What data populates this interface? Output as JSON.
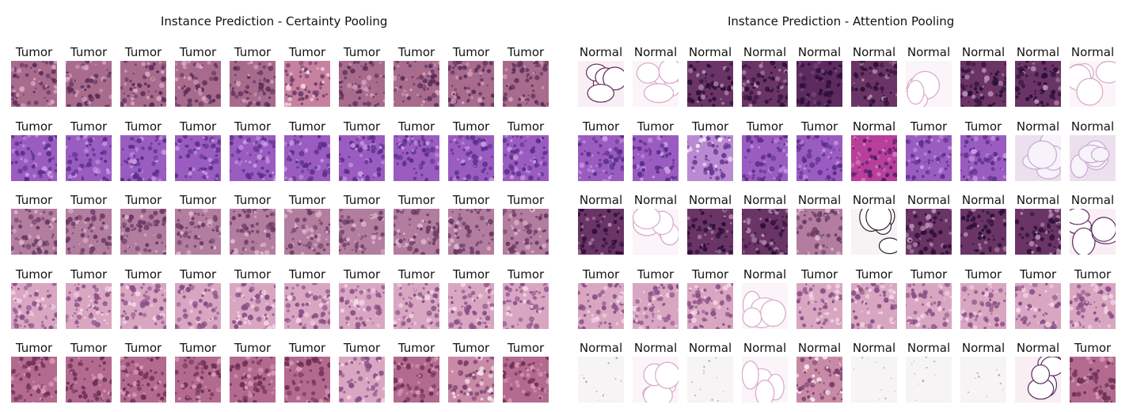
{
  "figure": {
    "panels": [
      {
        "title": "Instance Prediction - Certainty Pooling",
        "rows": [
          {
            "tissue": "dense-tumor",
            "labels": [
              "Tumor",
              "Tumor",
              "Tumor",
              "Tumor",
              "Tumor",
              "Tumor",
              "Tumor",
              "Tumor",
              "Tumor",
              "Tumor"
            ],
            "tiles": [
              "dense",
              "dense",
              "dense",
              "dense",
              "dense",
              "stroma",
              "dense",
              "dense",
              "dense",
              "dense"
            ]
          },
          {
            "tissue": "purple-tumor",
            "labels": [
              "Tumor",
              "Tumor",
              "Tumor",
              "Tumor",
              "Tumor",
              "Tumor",
              "Tumor",
              "Tumor",
              "Tumor",
              "Tumor"
            ],
            "tiles": [
              "violet",
              "violet",
              "violet",
              "violet",
              "violet",
              "violet",
              "violet",
              "violet",
              "violet",
              "violet"
            ]
          },
          {
            "tissue": "mauve-tumor",
            "labels": [
              "Tumor",
              "Tumor",
              "Tumor",
              "Tumor",
              "Tumor",
              "Tumor",
              "Tumor",
              "Tumor",
              "Tumor",
              "Tumor"
            ],
            "tiles": [
              "mauve",
              "mauve",
              "mauve",
              "mauve",
              "mauve",
              "mauve",
              "mauve",
              "mauve",
              "mauve",
              "mauve"
            ]
          },
          {
            "tissue": "pink-tumor",
            "labels": [
              "Tumor",
              "Tumor",
              "Tumor",
              "Tumor",
              "Tumor",
              "Tumor",
              "Tumor",
              "Tumor",
              "Tumor",
              "Tumor"
            ],
            "tiles": [
              "pink",
              "pink",
              "pink",
              "pink",
              "pink",
              "pink",
              "pink",
              "pink",
              "pink",
              "pink"
            ]
          },
          {
            "tissue": "rose-tumor",
            "labels": [
              "Tumor",
              "Tumor",
              "Tumor",
              "Tumor",
              "Tumor",
              "Tumor",
              "Tumor",
              "Tumor",
              "Tumor",
              "Tumor"
            ],
            "tiles": [
              "rose",
              "rose",
              "rose",
              "rose",
              "rose",
              "rose",
              "pink",
              "rose",
              "fiber",
              "rose"
            ]
          }
        ]
      },
      {
        "title": "Instance Prediction - Attention Pooling",
        "rows": [
          {
            "tissue": "mixed",
            "labels": [
              "Normal",
              "Normal",
              "Normal",
              "Normal",
              "Normal",
              "Normal",
              "Normal",
              "Normal",
              "Normal",
              "Normal"
            ],
            "tiles": [
              "fat-dark",
              "fat",
              "lymph",
              "lymph",
              "lymph-dark",
              "lymph",
              "fat",
              "lymph",
              "lymph",
              "fat"
            ]
          },
          {
            "tissue": "mixed",
            "labels": [
              "Tumor",
              "Tumor",
              "Tumor",
              "Tumor",
              "Tumor",
              "Normal",
              "Tumor",
              "Tumor",
              "Normal",
              "Normal"
            ],
            "tiles": [
              "violet",
              "violet",
              "violet-fat",
              "violet",
              "violet",
              "magenta",
              "violet",
              "violet",
              "fat-lilac",
              "fat-lilac"
            ]
          },
          {
            "tissue": "mixed",
            "labels": [
              "Normal",
              "Normal",
              "Normal",
              "Normal",
              "Normal",
              "Normal",
              "Normal",
              "Normal",
              "Normal",
              "Normal"
            ],
            "tiles": [
              "lymph",
              "fat",
              "lymph",
              "lymph",
              "mauve",
              "fat-black",
              "lymph",
              "lymph",
              "lymph",
              "fat-dark"
            ]
          },
          {
            "tissue": "mixed",
            "labels": [
              "Tumor",
              "Tumor",
              "Tumor",
              "Normal",
              "Tumor",
              "Tumor",
              "Tumor",
              "Tumor",
              "Tumor",
              "Tumor"
            ],
            "tiles": [
              "pink",
              "pink",
              "pink",
              "fat",
              "pink",
              "pink",
              "pink",
              "pink",
              "pink",
              "pink"
            ]
          },
          {
            "tissue": "mixed",
            "labels": [
              "Normal",
              "Normal",
              "Normal",
              "Normal",
              "Normal",
              "Normal",
              "Normal",
              "Normal",
              "Normal",
              "Tumor"
            ],
            "tiles": [
              "blank",
              "fat",
              "blank",
              "fat",
              "fiber",
              "blank",
              "blank",
              "blank",
              "fat-dark",
              "rose"
            ]
          }
        ]
      }
    ]
  },
  "palette": {
    "dense": {
      "bg": "#a86b8c",
      "dot": "#5a2f5c",
      "alt": "#d8a3c0"
    },
    "stroma": {
      "bg": "#c7819f",
      "dot": "#6e3c68",
      "alt": "#f1d7e3"
    },
    "violet": {
      "bg": "#9a5cc0",
      "dot": "#5a2f8a",
      "alt": "#c79ae0"
    },
    "mauve": {
      "bg": "#b27d9e",
      "dot": "#6a3a66",
      "alt": "#dcb6cc"
    },
    "pink": {
      "bg": "#d9a6c2",
      "dot": "#8a4f86",
      "alt": "#f1d6e4"
    },
    "rose": {
      "bg": "#b36a8e",
      "dot": "#6e3058",
      "alt": "#d99bb8"
    },
    "fiber": {
      "bg": "#c98aa6",
      "dot": "#7a4070",
      "alt": "#f6e6ee"
    },
    "lymph": {
      "bg": "#6a3466",
      "dot": "#2c1038",
      "alt": "#b58aac"
    },
    "lymph-dark": {
      "bg": "#5c2a5e",
      "dot": "#2a0e36",
      "alt": "#7a4a82"
    },
    "magenta": {
      "bg": "#b83e9a",
      "dot": "#4a1c6c",
      "alt": "#d77ac0"
    },
    "fat": {
      "bg": "#fbf4f8",
      "dot": "#d7a8c6",
      "alt": "#ffffff"
    },
    "fat-dark": {
      "bg": "#f9eef4",
      "dot": "#5c2a5e",
      "alt": "#ffffff"
    },
    "fat-lilac": {
      "bg": "#ece0ee",
      "dot": "#c8a8d0",
      "alt": "#f8f2fa"
    },
    "fat-black": {
      "bg": "#f7f2f4",
      "dot": "#2e2230",
      "alt": "#ffffff"
    },
    "violet-fat": {
      "bg": "#b98ad2",
      "dot": "#6a3a92",
      "alt": "#f3ecf7"
    },
    "blank": {
      "bg": "#f6f4f5",
      "dot": "#a9a3a8",
      "alt": "#ffffff"
    }
  }
}
